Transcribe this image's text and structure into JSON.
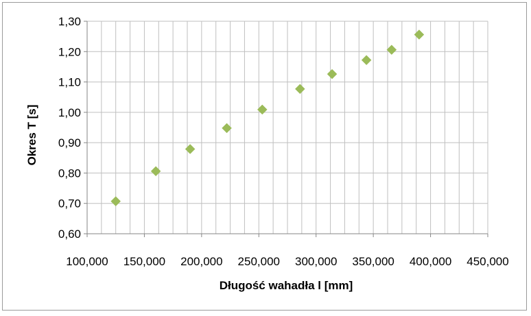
{
  "chart_data": {
    "type": "scatter",
    "title": "",
    "xlabel": "Długość wahadła l [mm]",
    "ylabel": "Okres T [s]",
    "xlim": [
      100000,
      450000
    ],
    "ylim": [
      0.6,
      1.3
    ],
    "x_ticks": [
      "100,000",
      "150,000",
      "200,000",
      "250,000",
      "300,000",
      "350,000",
      "400,000",
      "450,000"
    ],
    "y_ticks": [
      "0,60",
      "0,70",
      "0,80",
      "0,90",
      "1,00",
      "1,10",
      "1,20",
      "1,30"
    ],
    "grid": "on",
    "legend": "none",
    "marker": "diamond",
    "marker_color": "#9bbb59",
    "series": [
      {
        "x": [
          125000,
          160000,
          190000,
          222000,
          253000,
          286000,
          314000,
          344000,
          366000,
          390000
        ],
        "y": [
          0.707,
          0.806,
          0.879,
          0.948,
          1.009,
          1.077,
          1.126,
          1.172,
          1.206,
          1.256
        ]
      }
    ]
  }
}
